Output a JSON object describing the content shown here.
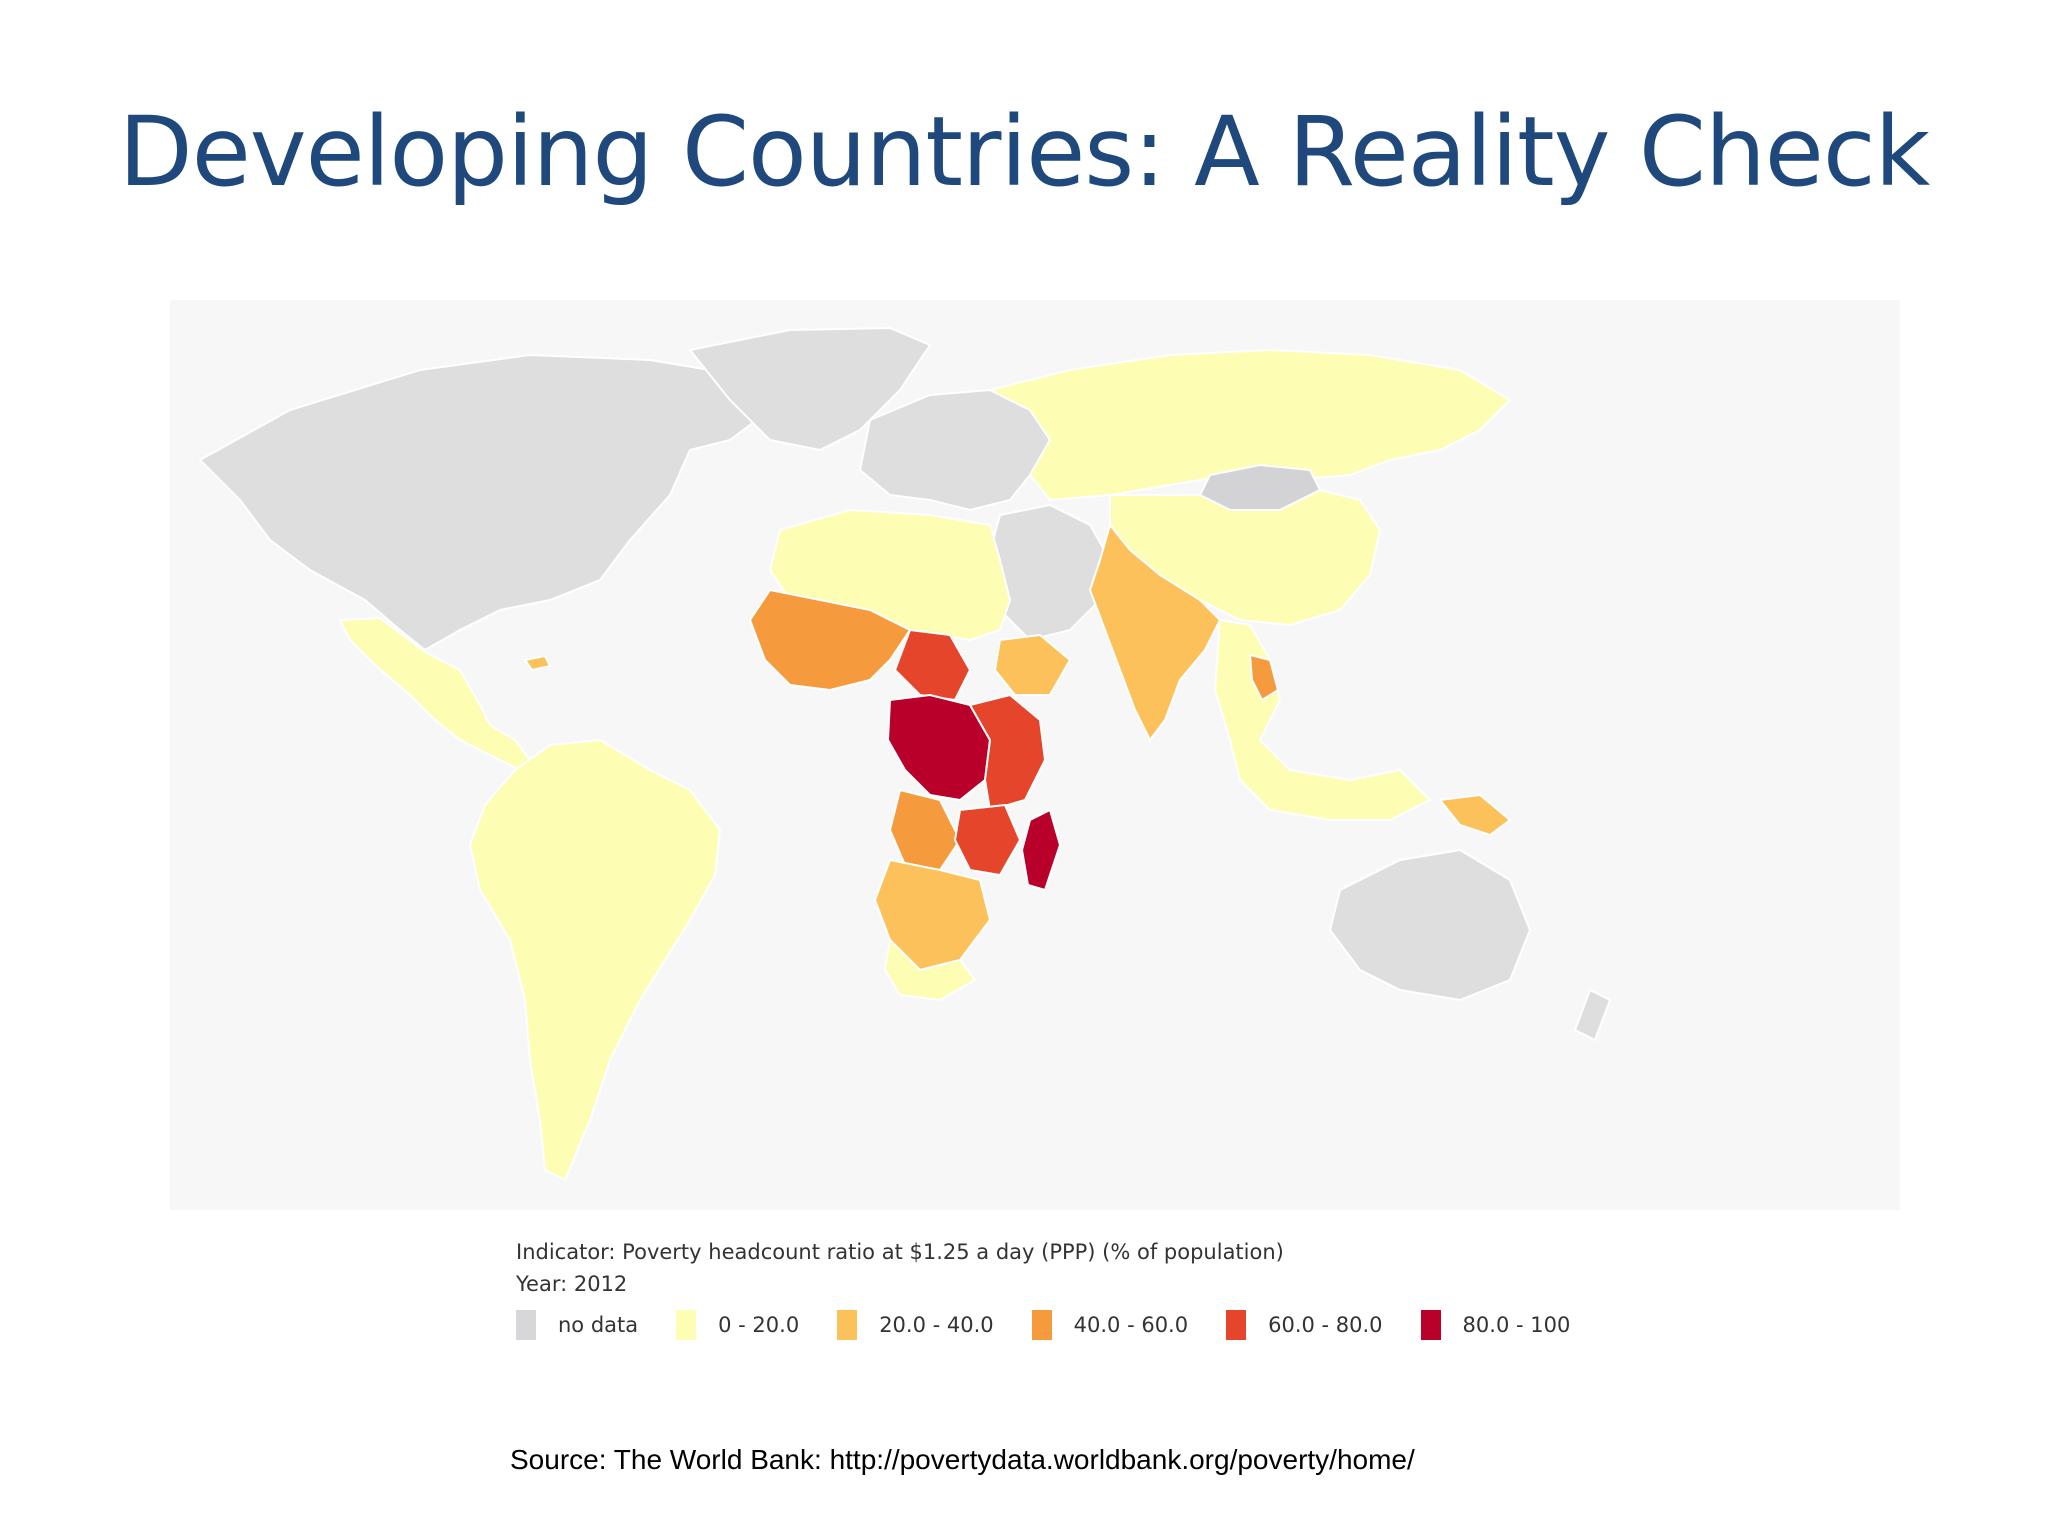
{
  "slide": {
    "title": "Developing Countries: A Reality Check"
  },
  "map": {
    "indicator": "Indicator: Poverty headcount ratio at $1.25 a day (PPP) (% of population)",
    "year": "Year: 2012",
    "legend": [
      {
        "label": "no data",
        "color": "#d7d7d9"
      },
      {
        "label": "0 - 20.0",
        "color": "#fdfdb4"
      },
      {
        "label": "20.0 - 40.0",
        "color": "#fcc15a"
      },
      {
        "label": "40.0 - 60.0",
        "color": "#f59b3e"
      },
      {
        "label": "60.0 - 80.0",
        "color": "#e5452b"
      },
      {
        "label": "80.0 - 100",
        "color": "#b8002a"
      }
    ],
    "regions": [
      {
        "name": "north-america",
        "class": "no data"
      },
      {
        "name": "greenland",
        "class": "no data"
      },
      {
        "name": "mexico-central-america",
        "class": "0 - 20.0"
      },
      {
        "name": "south-america",
        "class": "0 - 20.0"
      },
      {
        "name": "europe",
        "class": "no data"
      },
      {
        "name": "russia-central-asia",
        "class": "0 - 20.0"
      },
      {
        "name": "mongolia",
        "class": "no data"
      },
      {
        "name": "china",
        "class": "0 - 20.0"
      },
      {
        "name": "middle-east",
        "class": "no data"
      },
      {
        "name": "south-asia",
        "class": "20.0 - 40.0"
      },
      {
        "name": "southeast-asia",
        "class": "0 - 20.0"
      },
      {
        "name": "north-africa",
        "class": "0 - 20.0"
      },
      {
        "name": "west-africa",
        "class": "40.0 - 60.0"
      },
      {
        "name": "central-africa",
        "class": "80.0 - 100"
      },
      {
        "name": "east-africa",
        "class": "60.0 - 80.0"
      },
      {
        "name": "southern-africa",
        "class": "20.0 - 40.0"
      },
      {
        "name": "madagascar",
        "class": "80.0 - 100"
      },
      {
        "name": "australia",
        "class": "no data"
      },
      {
        "name": "papua-new-guinea",
        "class": "20.0 - 40.0"
      }
    ]
  },
  "source": "Source: The World Bank: http://povertydata.worldbank.org/poverty/home/"
}
